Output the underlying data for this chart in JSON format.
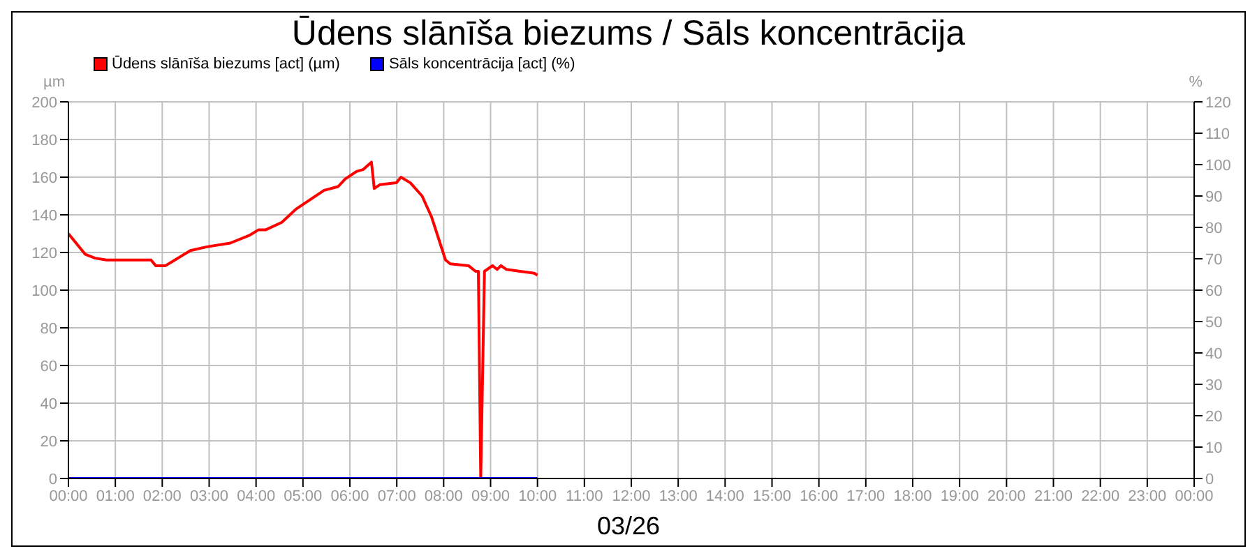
{
  "chart_data": {
    "type": "line",
    "title": "Ūdens slānīša biezums / Sāls koncentrācija",
    "xlabel": "03/26",
    "ylabel": "µm",
    "y2label": "%",
    "xlim": [
      0,
      24
    ],
    "xticks": [
      {
        "value": 0,
        "label": "00:00"
      },
      {
        "value": 1,
        "label": "01:00"
      },
      {
        "value": 2,
        "label": "02:00"
      },
      {
        "value": 3,
        "label": "03:00"
      },
      {
        "value": 4,
        "label": "04:00"
      },
      {
        "value": 5,
        "label": "05:00"
      },
      {
        "value": 6,
        "label": "06:00"
      },
      {
        "value": 7,
        "label": "07:00"
      },
      {
        "value": 8,
        "label": "08:00"
      },
      {
        "value": 9,
        "label": "09:00"
      },
      {
        "value": 10,
        "label": "10:00"
      },
      {
        "value": 11,
        "label": "11:00"
      },
      {
        "value": 12,
        "label": "12:00"
      },
      {
        "value": 13,
        "label": "13:00"
      },
      {
        "value": 14,
        "label": "14:00"
      },
      {
        "value": 15,
        "label": "15:00"
      },
      {
        "value": 16,
        "label": "16:00"
      },
      {
        "value": 17,
        "label": "17:00"
      },
      {
        "value": 18,
        "label": "18:00"
      },
      {
        "value": 19,
        "label": "19:00"
      },
      {
        "value": 20,
        "label": "20:00"
      },
      {
        "value": 21,
        "label": "21:00"
      },
      {
        "value": 22,
        "label": "22:00"
      },
      {
        "value": 23,
        "label": "23:00"
      },
      {
        "value": 24,
        "label": "00:00"
      }
    ],
    "ylim": [
      0,
      200
    ],
    "yticks": [
      0,
      20,
      40,
      60,
      80,
      100,
      120,
      140,
      160,
      180,
      200
    ],
    "y2lim": [
      0,
      120
    ],
    "y2ticks": [
      0,
      10,
      20,
      30,
      40,
      50,
      60,
      70,
      80,
      90,
      100,
      110,
      120
    ],
    "grid": true,
    "legend": "top left",
    "marker": "none",
    "series": [
      {
        "name": "Ūdens slānīša biezums [act] (µm)",
        "color": "#ff0000",
        "x": [
          0,
          0.36,
          0.57,
          0.81,
          1.76,
          1.86,
          2.07,
          2.4,
          2.6,
          2.95,
          3.45,
          3.85,
          4.05,
          4.2,
          4.55,
          4.85,
          5.15,
          5.45,
          5.75,
          5.9,
          6.14,
          6.28,
          6.46,
          6.52,
          6.64,
          6.99,
          7.09,
          7.29,
          7.54,
          7.74,
          8.04,
          8.14,
          8.53,
          8.68,
          8.74,
          8.79,
          8.87,
          9.04,
          9.14,
          9.22,
          9.34,
          9.63,
          9.93,
          10
        ],
        "values": [
          130,
          119,
          117,
          116,
          116,
          113,
          113,
          118,
          121,
          123,
          125,
          129,
          132,
          132,
          136,
          143,
          148,
          153,
          155,
          159,
          163,
          164,
          168,
          154,
          156,
          157,
          160,
          157,
          150,
          139,
          116,
          114,
          113,
          110,
          110,
          0,
          110,
          113,
          111,
          113,
          111,
          110,
          109,
          108
        ]
      },
      {
        "name": "Sāls koncentrācija [act] (%)",
        "color": "#0000ff",
        "axis": "y2",
        "x": [
          0,
          10
        ],
        "values": [
          0,
          0
        ]
      }
    ]
  }
}
